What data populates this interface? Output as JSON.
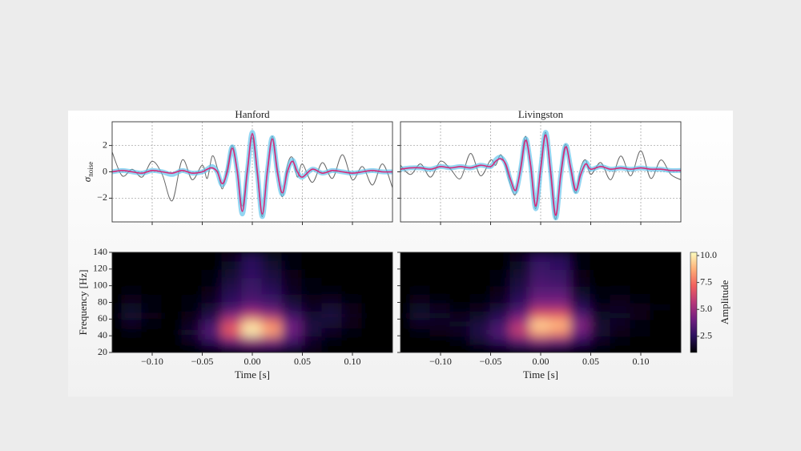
{
  "chart_data": [
    {
      "type": "line",
      "title": "Hanford",
      "ylabel": {
        "symbol": "σ",
        "subscript": "noise"
      },
      "xlim": [
        -0.14,
        0.14
      ],
      "ylim": [
        -3.8,
        3.8
      ],
      "xticks": [
        -0.1,
        -0.05,
        0,
        0.05,
        0.1
      ],
      "yticks": [
        {
          "value": -2,
          "label": "−2"
        },
        0,
        2
      ],
      "show_xtick_labels": false,
      "show_ytick_labels": true,
      "grid": true,
      "x": [
        -0.14,
        -0.13,
        -0.12,
        -0.11,
        -0.1,
        -0.09,
        -0.08,
        -0.07,
        -0.06,
        -0.05,
        -0.045,
        -0.04,
        -0.035,
        -0.03,
        -0.025,
        -0.02,
        -0.015,
        -0.01,
        -0.005,
        0,
        0.005,
        0.01,
        0.015,
        0.02,
        0.025,
        0.03,
        0.035,
        0.04,
        0.045,
        0.05,
        0.06,
        0.07,
        0.08,
        0.09,
        0.1,
        0.11,
        0.12,
        0.13,
        0.14
      ],
      "series": [
        {
          "color": "#666666",
          "linewidth": 1,
          "opacity": 1,
          "values": [
            1.5,
            -0.3,
            0.2,
            -0.4,
            0.8,
            -0.2,
            -2.2,
            0.9,
            -0.6,
            0.5,
            -0.5,
            1.2,
            0.3,
            -1.3,
            0.4,
            2.0,
            0.2,
            -2.6,
            0.3,
            2.6,
            -0.3,
            -3.4,
            0.2,
            2.7,
            0.3,
            -1.9,
            0.5,
            1.1,
            -0.4,
            0.6,
            -0.8,
            0.7,
            -0.5,
            1.3,
            -0.6,
            0.4,
            -1.0,
            0.6,
            -1.2
          ]
        },
        {
          "color": "#5bc0eb",
          "linewidth": 6,
          "opacity": 0.65,
          "values": [
            0,
            0.1,
            0,
            -0.1,
            0.1,
            0,
            -0.2,
            0.1,
            -0.1,
            0,
            0.2,
            0.4,
            0,
            -1.0,
            0,
            1.9,
            0,
            -3.2,
            0,
            3.0,
            0,
            -3.4,
            0,
            2.6,
            0,
            -1.7,
            0,
            0.9,
            0,
            -0.4,
            0.2,
            -0.1,
            0.1,
            0,
            -0.1,
            0,
            0.1,
            0,
            0
          ]
        },
        {
          "color": "#d6297a",
          "linewidth": 1.6,
          "opacity": 1,
          "values": [
            0,
            0.1,
            0,
            -0.1,
            0.1,
            0,
            -0.1,
            0.1,
            -0.1,
            0,
            0.2,
            0.3,
            0,
            -0.9,
            0,
            1.8,
            0,
            -3.0,
            0,
            2.9,
            0,
            -3.2,
            0,
            2.5,
            0,
            -1.6,
            0,
            0.8,
            0,
            -0.4,
            0.2,
            -0.1,
            0.1,
            0,
            -0.1,
            0,
            0.1,
            0,
            0
          ]
        }
      ]
    },
    {
      "type": "line",
      "title": "Livingston",
      "xlim": [
        -0.14,
        0.14
      ],
      "ylim": [
        -3.8,
        3.8
      ],
      "xticks": [
        -0.1,
        -0.05,
        0,
        0.05,
        0.1
      ],
      "yticks": [
        {
          "value": -2,
          "label": "−2"
        },
        0,
        2
      ],
      "show_xtick_labels": false,
      "show_ytick_labels": false,
      "grid": true,
      "x": [
        -0.14,
        -0.13,
        -0.12,
        -0.11,
        -0.1,
        -0.09,
        -0.08,
        -0.07,
        -0.06,
        -0.05,
        -0.045,
        -0.04,
        -0.035,
        -0.03,
        -0.025,
        -0.02,
        -0.015,
        -0.01,
        -0.005,
        0,
        0.005,
        0.01,
        0.015,
        0.02,
        0.025,
        0.03,
        0.035,
        0.04,
        0.045,
        0.05,
        0.06,
        0.07,
        0.08,
        0.09,
        0.1,
        0.11,
        0.12,
        0.13,
        0.14
      ],
      "series": [
        {
          "color": "#666666",
          "linewidth": 1,
          "opacity": 1,
          "values": [
            0.5,
            -0.2,
            0.6,
            -0.4,
            0.8,
            0.2,
            -0.5,
            1.4,
            -0.3,
            0.9,
            0.5,
            1.3,
            0.4,
            -1.0,
            -1.7,
            0.5,
            2.7,
            0.2,
            -2.8,
            0.5,
            3.0,
            -0.4,
            -3.6,
            0,
            2.1,
            0.1,
            -1.6,
            0.3,
            0.9,
            -0.2,
            0.7,
            -0.6,
            1.2,
            -0.3,
            1.6,
            -0.5,
            0.9,
            -0.2,
            -0.6
          ]
        },
        {
          "color": "#5bc0eb",
          "linewidth": 6,
          "opacity": 0.65,
          "values": [
            0.2,
            0.3,
            0.3,
            0.2,
            0.4,
            0.3,
            0.4,
            0.3,
            0.5,
            0.4,
            0.9,
            1.1,
            0.6,
            -0.7,
            -1.5,
            0.2,
            2.5,
            0.5,
            -2.8,
            0.2,
            3.0,
            0,
            -3.5,
            -0.3,
            2.0,
            0.3,
            -1.5,
            -0.2,
            0.7,
            0.2,
            0.4,
            0.2,
            0.3,
            0.2,
            0.3,
            0.2,
            0.2,
            0.1,
            0.1
          ]
        },
        {
          "color": "#d6297a",
          "linewidth": 1.6,
          "opacity": 1,
          "values": [
            0.2,
            0.3,
            0.3,
            0.2,
            0.4,
            0.3,
            0.4,
            0.3,
            0.5,
            0.4,
            0.8,
            1.0,
            0.6,
            -0.6,
            -1.4,
            0.2,
            2.4,
            0.5,
            -2.6,
            0.2,
            2.8,
            0,
            -3.3,
            -0.3,
            1.9,
            0.3,
            -1.4,
            -0.2,
            0.6,
            0.2,
            0.4,
            0.2,
            0.3,
            0.2,
            0.3,
            0.2,
            0.2,
            0.1,
            0.1
          ]
        }
      ]
    },
    {
      "type": "heatmap",
      "xlabel": "Time [s]",
      "ylabel": "Frequency [Hz]",
      "xlim": [
        -0.14,
        0.14
      ],
      "ylim": [
        20,
        140
      ],
      "xticks": [
        {
          "value": -0.1,
          "label": "−0.10"
        },
        {
          "value": -0.05,
          "label": "−0.05"
        },
        {
          "value": 0,
          "label": "0.00"
        },
        {
          "value": 0.05,
          "label": "0.05"
        },
        {
          "value": 0.1,
          "label": "0.10"
        }
      ],
      "yticks": [
        20,
        40,
        60,
        80,
        100,
        120,
        140
      ],
      "show_xtick_labels": true,
      "show_ytick_labels": true,
      "colormap": [
        "#000004",
        "#2c115f",
        "#721f81",
        "#b73779",
        "#f1605d",
        "#feb078",
        "#fcfdbf"
      ],
      "zlim": [
        1,
        10.3
      ],
      "x": [
        -0.14,
        -0.12,
        -0.1,
        -0.08,
        -0.06,
        -0.04,
        -0.02,
        0,
        0.02,
        0.04,
        0.06,
        0.08,
        0.1,
        0.12,
        0.14
      ],
      "y": [
        25,
        35,
        45,
        55,
        65,
        75,
        85,
        95,
        105,
        115,
        125,
        135
      ],
      "z": [
        [
          1,
          1,
          1,
          1,
          1,
          1.5,
          2,
          2.5,
          2.5,
          2,
          1.5,
          1,
          1,
          1,
          1
        ],
        [
          1,
          1,
          1,
          1,
          1.5,
          2.5,
          4,
          5,
          4.5,
          3,
          1.5,
          1.2,
          1,
          1,
          1
        ],
        [
          1,
          1.2,
          1,
          1,
          1.8,
          3.5,
          7,
          10,
          8.5,
          4,
          2,
          1.5,
          1.2,
          1,
          1
        ],
        [
          1,
          1.5,
          1.2,
          1,
          1.5,
          3,
          6.5,
          9.5,
          8,
          4,
          2,
          1.8,
          1.3,
          1,
          1
        ],
        [
          1,
          1.8,
          1.3,
          1,
          1.3,
          2.2,
          4.5,
          6,
          5,
          3,
          1.8,
          2,
          1.4,
          1,
          1
        ],
        [
          1,
          1.6,
          1.2,
          1,
          1.2,
          1.8,
          3,
          4,
          3.5,
          2.2,
          1.5,
          1.8,
          1.3,
          1,
          1
        ],
        [
          1,
          1.3,
          1.1,
          1,
          1.1,
          1.5,
          2.5,
          3.2,
          2.8,
          1.8,
          1.3,
          1.4,
          1.1,
          1,
          1
        ],
        [
          1,
          1.1,
          1,
          1,
          1,
          1.3,
          2.3,
          3,
          2.5,
          1.5,
          1.2,
          1.2,
          1,
          1,
          1
        ],
        [
          1,
          1,
          1,
          1,
          1,
          1.2,
          2,
          2.8,
          2.2,
          1.4,
          1.1,
          1,
          1,
          1,
          1
        ],
        [
          1,
          1,
          1,
          1,
          1,
          1.1,
          1.8,
          2.6,
          2,
          1.3,
          1,
          1,
          1,
          1,
          1
        ],
        [
          1,
          1,
          1,
          1,
          1,
          1,
          1.6,
          2.5,
          1.8,
          1.2,
          1,
          1,
          1,
          1,
          1
        ],
        [
          1,
          1,
          1,
          1,
          1,
          1,
          1.5,
          2.4,
          1.6,
          1.1,
          1,
          1,
          1,
          1,
          1
        ]
      ]
    },
    {
      "type": "heatmap",
      "xlabel": "Time [s]",
      "xlim": [
        -0.14,
        0.14
      ],
      "ylim": [
        20,
        140
      ],
      "xticks": [
        {
          "value": -0.1,
          "label": "−0.10"
        },
        {
          "value": -0.05,
          "label": "−0.05"
        },
        {
          "value": 0,
          "label": "0.00"
        },
        {
          "value": 0.05,
          "label": "0.05"
        },
        {
          "value": 0.1,
          "label": "0.10"
        }
      ],
      "yticks": [
        20,
        40,
        60,
        80,
        100,
        120,
        140
      ],
      "show_xtick_labels": true,
      "show_ytick_labels": false,
      "colormap": [
        "#000004",
        "#2c115f",
        "#721f81",
        "#b73779",
        "#f1605d",
        "#feb078",
        "#fcfdbf"
      ],
      "zlim": [
        1,
        10.3
      ],
      "colorbar": {
        "label": "Amplitude",
        "ticks": [
          2.5,
          {
            "value": 5,
            "label": "5.0"
          },
          7.5,
          {
            "value": 10,
            "label": "10.0"
          }
        ]
      },
      "x": [
        -0.14,
        -0.12,
        -0.1,
        -0.08,
        -0.06,
        -0.04,
        -0.02,
        0,
        0.02,
        0.04,
        0.06,
        0.08,
        0.1,
        0.12,
        0.14
      ],
      "y": [
        25,
        35,
        45,
        55,
        65,
        75,
        85,
        95,
        105,
        115,
        125,
        135
      ],
      "z": [
        [
          1,
          1,
          1,
          1,
          1.2,
          1.5,
          2,
          2.2,
          2,
          1.5,
          1.2,
          1,
          1,
          1,
          1
        ],
        [
          1,
          1,
          1,
          1.2,
          1.8,
          2.5,
          3.5,
          4.5,
          4,
          2.5,
          1.5,
          1.2,
          1,
          1,
          1
        ],
        [
          1,
          1.2,
          1.3,
          1.5,
          2.2,
          3.5,
          6,
          8.5,
          8,
          4,
          1.8,
          1.3,
          1.1,
          1,
          1
        ],
        [
          1,
          1.5,
          1.5,
          1.6,
          2,
          3,
          5.5,
          9.5,
          9,
          4.5,
          1.8,
          1.5,
          1.2,
          1,
          1
        ],
        [
          1,
          1.8,
          1.6,
          1.4,
          1.6,
          2.4,
          4,
          7,
          7,
          3.5,
          1.6,
          1.6,
          1.3,
          1,
          1
        ],
        [
          1,
          1.6,
          1.4,
          1.2,
          1.3,
          1.8,
          3,
          5,
          5,
          2.5,
          1.4,
          1.5,
          1.3,
          1.1,
          1
        ],
        [
          1,
          1.3,
          1.2,
          1,
          1.1,
          1.5,
          2.5,
          4,
          4,
          2,
          1.2,
          1.3,
          1.2,
          1,
          1
        ],
        [
          1,
          1.1,
          1,
          1,
          1,
          1.3,
          2.2,
          3.5,
          3.5,
          1.6,
          1.1,
          1.1,
          1,
          1,
          1
        ],
        [
          1,
          1,
          1,
          1,
          1,
          1.2,
          2,
          3.2,
          3,
          1.4,
          1,
          1,
          1,
          1,
          1
        ],
        [
          1,
          1,
          1,
          1,
          1,
          1.1,
          1.8,
          3,
          2.8,
          1.3,
          1,
          1,
          1,
          1,
          1
        ],
        [
          1,
          1,
          1,
          1,
          1,
          1,
          1.6,
          2.8,
          2.6,
          1.2,
          1,
          1,
          1,
          1,
          1
        ],
        [
          1,
          1,
          1,
          1,
          1,
          1,
          1.5,
          2.6,
          2.4,
          1.1,
          1,
          1,
          1,
          1,
          1
        ]
      ]
    }
  ]
}
